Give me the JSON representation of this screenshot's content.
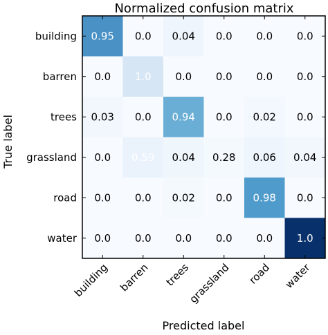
{
  "chart_data": {
    "type": "heatmap",
    "title": "Normalized confusion matrix",
    "xlabel": "Predicted label",
    "ylabel": "True label",
    "x_categories": [
      "building",
      "barren",
      "trees",
      "grassland",
      "road",
      "water"
    ],
    "y_categories": [
      "building",
      "barren",
      "trees",
      "grassland",
      "road",
      "water"
    ],
    "values": [
      [
        0.95,
        0.0,
        0.04,
        0.0,
        0.0,
        0.0
      ],
      [
        0.0,
        1.0,
        0.0,
        0.0,
        0.0,
        0.0
      ],
      [
        0.03,
        0.0,
        0.94,
        0.0,
        0.02,
        0.0
      ],
      [
        0.0,
        0.59,
        0.04,
        0.28,
        0.06,
        0.04
      ],
      [
        0.0,
        0.0,
        0.02,
        0.0,
        0.98,
        0.0
      ],
      [
        0.0,
        0.0,
        0.0,
        0.0,
        0.0,
        1.0
      ]
    ],
    "cell_labels": [
      [
        "0.95",
        "0.0",
        "0.04",
        "0.0",
        "0.0",
        "0.0"
      ],
      [
        "0.0",
        "1.0",
        "0.0",
        "0.0",
        "0.0",
        "0.0"
      ],
      [
        "0.03",
        "0.0",
        "0.94",
        "0.0",
        "0.02",
        "0.0"
      ],
      [
        "0.0",
        "0.59",
        "0.04",
        "0.28",
        "0.06",
        "0.04"
      ],
      [
        "0.0",
        "0.0",
        "0.02",
        "0.0",
        "0.98",
        "0.0"
      ],
      [
        "0.0",
        "0.0",
        "0.0",
        "0.0",
        "0.0",
        "1.0"
      ]
    ],
    "colors": [
      [
        "#4a92c6",
        "#f7fbff",
        "#eef5fd",
        "#f7fbff",
        "#f7fbff",
        "#f7fbff"
      ],
      [
        "#f7fbff",
        "#d6e6f4",
        "#f7fbff",
        "#f7fbff",
        "#f7fbff",
        "#f7fbff"
      ],
      [
        "#f1f7fd",
        "#f7fbff",
        "#6aaed6",
        "#f7fbff",
        "#f3f8fe",
        "#f7fbff"
      ],
      [
        "#f7fbff",
        "#eaf2fb",
        "#eff6fc",
        "#f4f9fe",
        "#eef5fc",
        "#f1f7fd"
      ],
      [
        "#f7fbff",
        "#f7fbff",
        "#f4f9fe",
        "#f7fbff",
        "#4f9bcb",
        "#f7fbff"
      ],
      [
        "#f7fbff",
        "#f7fbff",
        "#f7fbff",
        "#f7fbff",
        "#f7fbff",
        "#08306b"
      ]
    ],
    "text_colors": [
      [
        "#ffffff",
        "#000000",
        "#000000",
        "#000000",
        "#000000",
        "#000000"
      ],
      [
        "#000000",
        "#ffffff",
        "#000000",
        "#000000",
        "#000000",
        "#000000"
      ],
      [
        "#000000",
        "#000000",
        "#ffffff",
        "#000000",
        "#000000",
        "#000000"
      ],
      [
        "#000000",
        "#ffffff",
        "#000000",
        "#000000",
        "#000000",
        "#000000"
      ],
      [
        "#000000",
        "#000000",
        "#000000",
        "#000000",
        "#ffffff",
        "#000000"
      ],
      [
        "#000000",
        "#000000",
        "#000000",
        "#000000",
        "#000000",
        "#ffffff"
      ]
    ],
    "colormap": "Blues",
    "value_range": [
      0,
      1
    ],
    "grid": false,
    "legend": "none"
  }
}
